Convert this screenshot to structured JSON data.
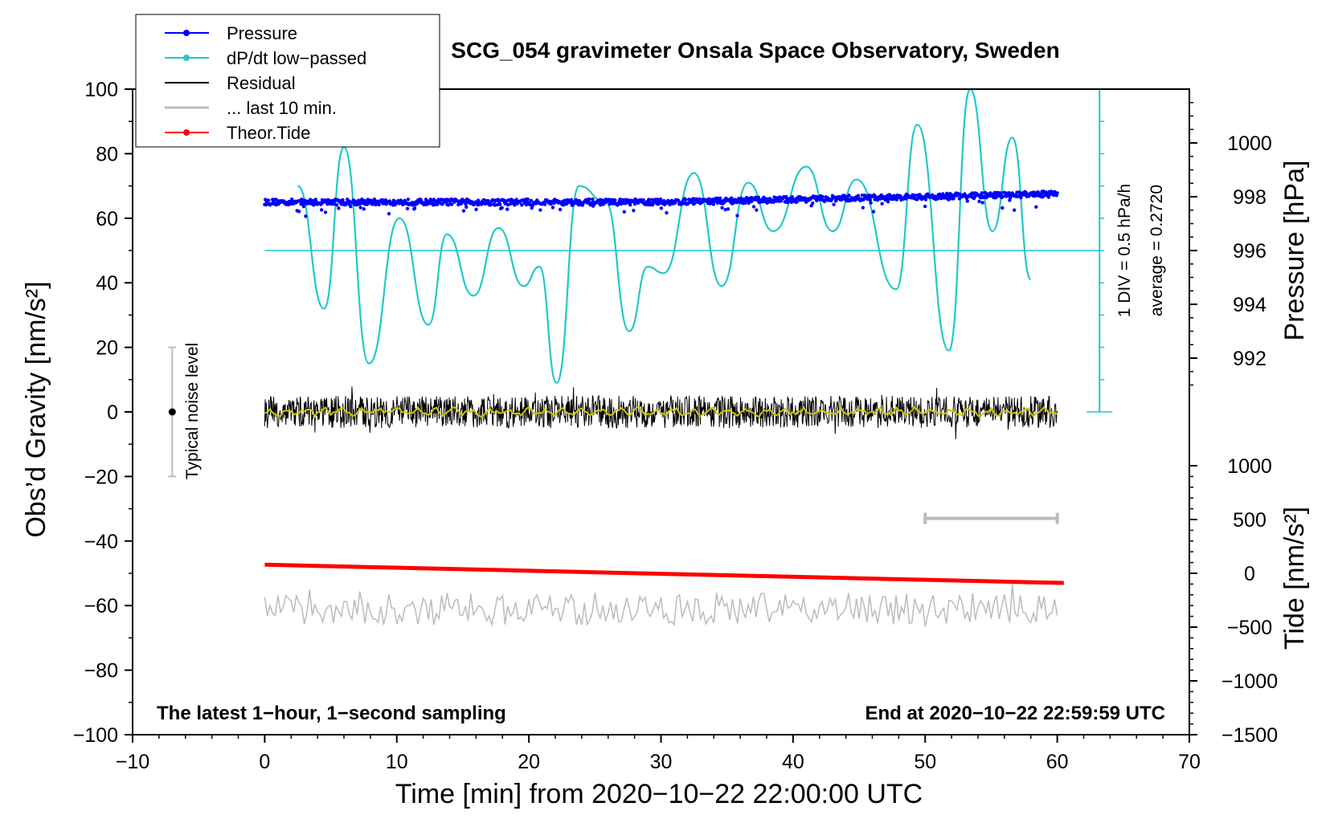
{
  "chart_data": {
    "type": "line",
    "title": "SCG_054 gravimeter Onsala Space Observatory, Sweden",
    "xlabel": "Time [min] from 2020−10−22 22:00:00 UTC",
    "ylabel_left": "Obs’d Gravity [nm/s²]",
    "ylabel_right_top": "Pressure [hPa]",
    "ylabel_right_bottom": "Tide [nm/s²]",
    "xlim": [
      -10,
      70
    ],
    "ylim": [
      -100,
      100
    ],
    "xticks": [
      "−10",
      "0",
      "10",
      "20",
      "30",
      "40",
      "50",
      "60",
      "70"
    ],
    "xtick_values": [
      -10,
      0,
      10,
      20,
      30,
      40,
      50,
      60,
      70
    ],
    "yticks": [
      "100",
      "80",
      "60",
      "40",
      "20",
      "0",
      "−20",
      "−40",
      "−60",
      "−80",
      "−100"
    ],
    "ytick_values": [
      100,
      80,
      60,
      40,
      20,
      0,
      -20,
      -40,
      -60,
      -80,
      -100
    ],
    "pressure_axis": {
      "ticks": [
        "1000",
        "998",
        "996",
        "994",
        "992"
      ],
      "tick_values": [
        1000,
        998,
        996,
        994,
        992
      ],
      "gravity_equiv_of_996": 50,
      "gravity_per_hpa": 8.333
    },
    "tide_axis": {
      "ticks": [
        "1000",
        "500",
        "0",
        "−500",
        "−1000",
        "−1500"
      ],
      "tick_values": [
        1000,
        500,
        0,
        -500,
        -1000,
        -1500
      ],
      "gravity_equiv_of_0": -50,
      "gravity_per_unit": 0.03333
    },
    "legend": [
      {
        "label": "Pressure",
        "color": "#0000ff",
        "marker": true
      },
      {
        "label": "dP/dt low−passed",
        "color": "#22c8c8",
        "marker": true
      },
      {
        "label": "Residual",
        "color": "#000000",
        "marker": false
      },
      {
        "label": "... last 10 min.",
        "color": "#bbbbbb",
        "marker": false
      },
      {
        "label": "Theor.Tide",
        "color": "#ff0000",
        "marker": true
      }
    ],
    "series": [
      {
        "name": "Pressure",
        "color": "#0000ff",
        "unit": "hPa",
        "x": [
          0,
          10,
          20,
          30,
          40,
          50,
          60
        ],
        "y": [
          997.8,
          997.8,
          997.8,
          997.8,
          997.9,
          998.0,
          998.1
        ]
      },
      {
        "name": "dP/dt low−passed",
        "color": "#22c8c8",
        "unit": "gravity-axis",
        "x": [
          2.5,
          4.5,
          6.0,
          7.9,
          10.2,
          12.4,
          13.8,
          15.8,
          17.7,
          19.6,
          20.8,
          22.1,
          23.8,
          25.8,
          27.6,
          29.0,
          30.2,
          32.5,
          34.6,
          36.6,
          38.5,
          41.0,
          43.0,
          44.8,
          47.8,
          49.4,
          51.8,
          53.4,
          55.1,
          56.6,
          58.0
        ],
        "y": [
          70,
          32,
          82,
          15,
          60,
          27,
          55,
          36,
          57,
          39,
          45,
          9,
          70,
          65,
          25,
          45,
          43,
          74,
          39,
          71,
          56,
          76,
          56,
          72,
          38,
          89,
          19,
          100,
          56,
          85,
          41
        ]
      },
      {
        "name": "dP/dt zero reference",
        "color": "#22c8c8",
        "x": [
          0,
          63.2
        ],
        "y": [
          50,
          50
        ]
      },
      {
        "name": "Residual",
        "color": "#000000",
        "x": [
          0,
          60
        ],
        "y": [
          0,
          0
        ],
        "amplitude": 5
      },
      {
        "name": "Residual smoothed",
        "color": "#c8c800",
        "x": [
          0,
          60
        ],
        "y": [
          0,
          0
        ]
      },
      {
        "name": "... last 10 min.",
        "color": "#bbbbbb",
        "x": [
          0,
          60
        ],
        "y": [
          -61,
          -61
        ],
        "amplitude": 5
      },
      {
        "name": "Theor.Tide",
        "color": "#ff0000",
        "unit": "nm/s²",
        "x": [
          0,
          60.5
        ],
        "y": [
          80,
          -90
        ]
      }
    ],
    "dpdt_scale": {
      "division_hpa_per_h": 0.5,
      "average": 0.272,
      "axis_x": 63.2,
      "top": 100,
      "bottom": 0,
      "divisions": 10
    },
    "noise_bar": {
      "x": -7,
      "center": 0,
      "low": -20,
      "high": 20
    },
    "last10_marker": {
      "x_start": 50,
      "x_end": 60,
      "y": -33
    },
    "annotations": {
      "scale_label": "1 DIV = 0.5 hPa/h",
      "average_label": "average = 0.2720",
      "noise_label": "Typical noise level",
      "bottom_left": "The latest 1−hour, 1−second sampling",
      "bottom_right": "End at 2020−10−22 22:59:59 UTC"
    }
  }
}
